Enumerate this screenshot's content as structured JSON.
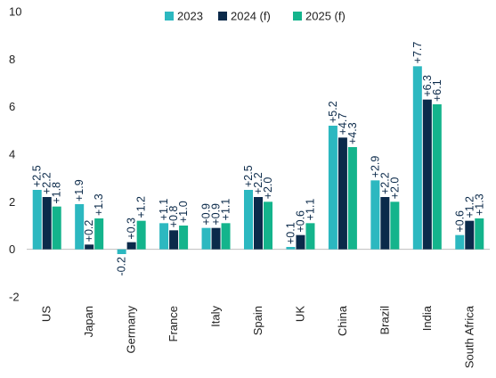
{
  "chart_data": {
    "type": "bar",
    "title": "",
    "xlabel": "",
    "ylabel": "",
    "ylim": [
      -2,
      10
    ],
    "yticks": [
      -2,
      0,
      2,
      4,
      6,
      8,
      10
    ],
    "grid": false,
    "legend_position": "top-right",
    "categories": [
      "US",
      "Japan",
      "Germany",
      "France",
      "Italy",
      "Spain",
      "UK",
      "China",
      "Brazil",
      "India",
      "South Africa"
    ],
    "series": [
      {
        "name": "2023",
        "color": "#2cb8c0",
        "values": [
          2.5,
          1.9,
          -0.2,
          1.1,
          0.9,
          2.5,
          0.1,
          5.2,
          2.9,
          7.7,
          0.6
        ],
        "labels": [
          "+2.5",
          "+1.9",
          "-0.2",
          "+1.1",
          "+0.9",
          "+2.5",
          "+0.1",
          "+5.2",
          "+2.9",
          "+7.7",
          "+0.6"
        ]
      },
      {
        "name": "2024 (f)",
        "color": "#0b2a4a",
        "values": [
          2.2,
          0.2,
          0.3,
          0.8,
          0.9,
          2.2,
          0.6,
          4.7,
          2.2,
          6.3,
          1.2
        ],
        "labels": [
          "+2.2",
          "+0.2",
          "+0.3",
          "+0.8",
          "+0.9",
          "+2.2",
          "+0.6",
          "+4.7",
          "+2.2",
          "+6.3",
          "+1.2"
        ]
      },
      {
        "name": "2025 (f)",
        "color": "#14b48c",
        "values": [
          1.8,
          1.3,
          1.2,
          1.0,
          1.1,
          2.0,
          1.1,
          4.3,
          2.0,
          6.1,
          1.3
        ],
        "labels": [
          "+1.8",
          "+1.3",
          "+1.2",
          "+1.0",
          "+1.1",
          "+2.0",
          "+1.1",
          "+4.3",
          "+2.0",
          "+6.1",
          "+1.3"
        ]
      }
    ]
  }
}
